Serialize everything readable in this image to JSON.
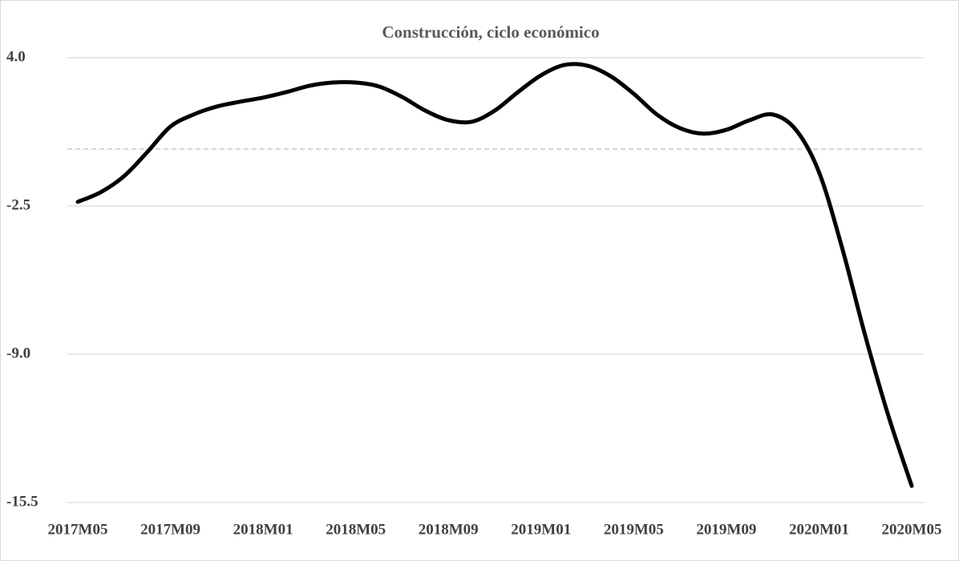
{
  "chart_data": {
    "type": "line",
    "title": "Construcción, ciclo económico",
    "categories": [
      "2017M05",
      null,
      null,
      null,
      "2017M09",
      null,
      null,
      null,
      "2018M01",
      null,
      null,
      null,
      "2018M05",
      null,
      null,
      null,
      "2018M09",
      null,
      null,
      null,
      "2019M01",
      null,
      null,
      null,
      "2019M05",
      null,
      null,
      null,
      "2019M09",
      null,
      null,
      null,
      "2020M01",
      null,
      null,
      null,
      "2020M05"
    ],
    "series": [
      {
        "name": "Construcción",
        "color": "#000000",
        "values": [
          -2.32,
          -1.89,
          -1.19,
          -0.14,
          0.98,
          1.51,
          1.86,
          2.07,
          2.25,
          2.49,
          2.77,
          2.91,
          2.91,
          2.74,
          2.28,
          1.68,
          1.26,
          1.19,
          1.68,
          2.49,
          3.23,
          3.68,
          3.65,
          3.19,
          2.42,
          1.51,
          0.91,
          0.67,
          0.84,
          1.26,
          1.51,
          0.84,
          -1.02,
          -4.35,
          -8.21,
          -11.72,
          -14.77
        ]
      }
    ],
    "ylim": [
      -15.5,
      4.0
    ],
    "yticks": [
      {
        "value": 4,
        "label": "4.0"
      },
      {
        "value": -2.5,
        "label": "-2.5"
      },
      {
        "value": -9,
        "label": "-9.0"
      },
      {
        "value": -15.5,
        "label": "-15.5"
      }
    ],
    "grid": true,
    "zero_line": true
  }
}
